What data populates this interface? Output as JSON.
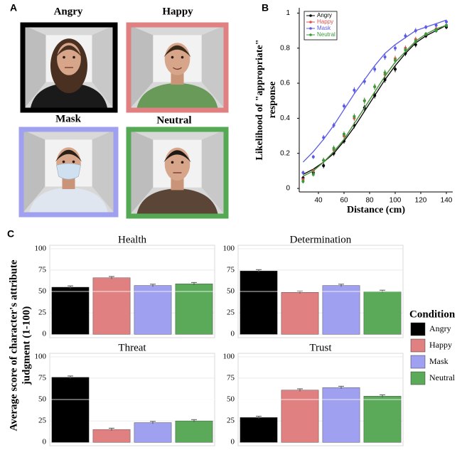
{
  "panel_labels": [
    "A",
    "B",
    "C"
  ],
  "faces": [
    {
      "label": "Angry",
      "color": "#000000"
    },
    {
      "label": "Happy",
      "color": "#e08080"
    },
    {
      "label": "Mask",
      "color": "#9fa0f0"
    },
    {
      "label": "Neutral",
      "color": "#55a955"
    }
  ],
  "chart_data": [
    {
      "type": "line",
      "xlabel": "Distance (cm)",
      "ylabel": [
        "Likelihood of \"appropriate\"",
        "response"
      ],
      "x": [
        28,
        36,
        44,
        52,
        60,
        68,
        76,
        84,
        92,
        100,
        108,
        116,
        124,
        132,
        140
      ],
      "xlim": [
        25,
        145
      ],
      "xticks": [
        40,
        60,
        80,
        100,
        120,
        140
      ],
      "ylim": [
        -0.02,
        1.03
      ],
      "yticks": [
        0,
        0.2,
        0.4,
        0.6,
        0.8,
        1
      ],
      "series": [
        {
          "name": "Angry",
          "color": "#000000",
          "values": [
            0.06,
            0.09,
            0.13,
            0.2,
            0.27,
            0.36,
            0.46,
            0.53,
            0.62,
            0.68,
            0.77,
            0.82,
            0.87,
            0.9,
            0.92
          ],
          "errors": [
            0.012,
            0.012,
            0.015,
            0.015,
            0.015,
            0.017,
            0.017,
            0.017,
            0.017,
            0.017,
            0.015,
            0.015,
            0.012,
            0.012,
            0.012
          ],
          "fit": [
            0.08,
            0.11,
            0.15,
            0.2,
            0.27,
            0.35,
            0.44,
            0.53,
            0.62,
            0.7,
            0.77,
            0.83,
            0.87,
            0.9,
            0.93
          ]
        },
        {
          "name": "Happy",
          "color": "#d9534f",
          "values": [
            0.05,
            0.1,
            0.16,
            0.22,
            0.3,
            0.4,
            0.5,
            0.58,
            0.65,
            0.74,
            0.8,
            0.85,
            0.88,
            0.91,
            0.93
          ],
          "errors": [
            0.012,
            0.012,
            0.015,
            0.015,
            0.015,
            0.017,
            0.017,
            0.017,
            0.017,
            0.017,
            0.015,
            0.015,
            0.012,
            0.012,
            0.012
          ],
          "fit": [
            0.07,
            0.1,
            0.15,
            0.21,
            0.28,
            0.37,
            0.46,
            0.55,
            0.64,
            0.72,
            0.78,
            0.84,
            0.88,
            0.91,
            0.93
          ]
        },
        {
          "name": "Mask",
          "color": "#5b5be6",
          "values": [
            0.09,
            0.18,
            0.29,
            0.36,
            0.47,
            0.56,
            0.61,
            0.68,
            0.75,
            0.8,
            0.87,
            0.9,
            0.92,
            0.93,
            0.95
          ],
          "errors": [
            0.012,
            0.012,
            0.015,
            0.015,
            0.015,
            0.017,
            0.017,
            0.017,
            0.017,
            0.017,
            0.015,
            0.015,
            0.012,
            0.012,
            0.012
          ],
          "fit": [
            0.15,
            0.21,
            0.28,
            0.36,
            0.45,
            0.54,
            0.62,
            0.7,
            0.77,
            0.82,
            0.86,
            0.9,
            0.92,
            0.94,
            0.96
          ]
        },
        {
          "name": "Neutral",
          "color": "#3a9a3a",
          "values": [
            0.04,
            0.08,
            0.16,
            0.23,
            0.31,
            0.41,
            0.5,
            0.58,
            0.66,
            0.73,
            0.79,
            0.84,
            0.88,
            0.9,
            0.93
          ],
          "errors": [
            0.012,
            0.012,
            0.015,
            0.015,
            0.015,
            0.017,
            0.017,
            0.017,
            0.017,
            0.017,
            0.015,
            0.015,
            0.012,
            0.012,
            0.012
          ],
          "fit": [
            0.07,
            0.1,
            0.15,
            0.21,
            0.28,
            0.37,
            0.46,
            0.55,
            0.64,
            0.72,
            0.78,
            0.84,
            0.88,
            0.91,
            0.93
          ]
        }
      ]
    },
    {
      "type": "bar",
      "title": "Health",
      "values": [
        55,
        66,
        57,
        59
      ],
      "errors": [
        1.5,
        1.5,
        1.5,
        1.5
      ],
      "ylim": [
        -4,
        104
      ],
      "yticks": [
        0,
        25,
        50,
        75,
        100
      ]
    },
    {
      "type": "bar",
      "title": "Determination",
      "values": [
        74,
        49,
        57,
        50
      ],
      "errors": [
        1.5,
        1.5,
        1.5,
        1.5
      ],
      "ylim": [
        -4,
        104
      ],
      "yticks": [
        0,
        25,
        50,
        75,
        100
      ]
    },
    {
      "type": "bar",
      "title": "Threat",
      "values": [
        76,
        15,
        23,
        25
      ],
      "errors": [
        1.5,
        1.5,
        1.5,
        1.5
      ],
      "ylim": [
        -4,
        104
      ],
      "yticks": [
        0,
        25,
        50,
        75,
        100
      ]
    },
    {
      "type": "bar",
      "title": "Trust",
      "values": [
        29,
        61,
        64,
        54
      ],
      "errors": [
        1.5,
        1.5,
        1.5,
        1.5
      ],
      "ylim": [
        -4,
        104
      ],
      "yticks": [
        0,
        25,
        50,
        75,
        100
      ]
    }
  ],
  "bar_ylabel": [
    "Average score of character's attribute",
    "judgment (1-100)"
  ],
  "condition_legend": {
    "title": "Condition",
    "entries": [
      "Angry",
      "Happy",
      "Mask",
      "Neutral"
    ],
    "colors": [
      "#000000",
      "#e08080",
      "#9fa0f0",
      "#5aaa5a"
    ]
  }
}
